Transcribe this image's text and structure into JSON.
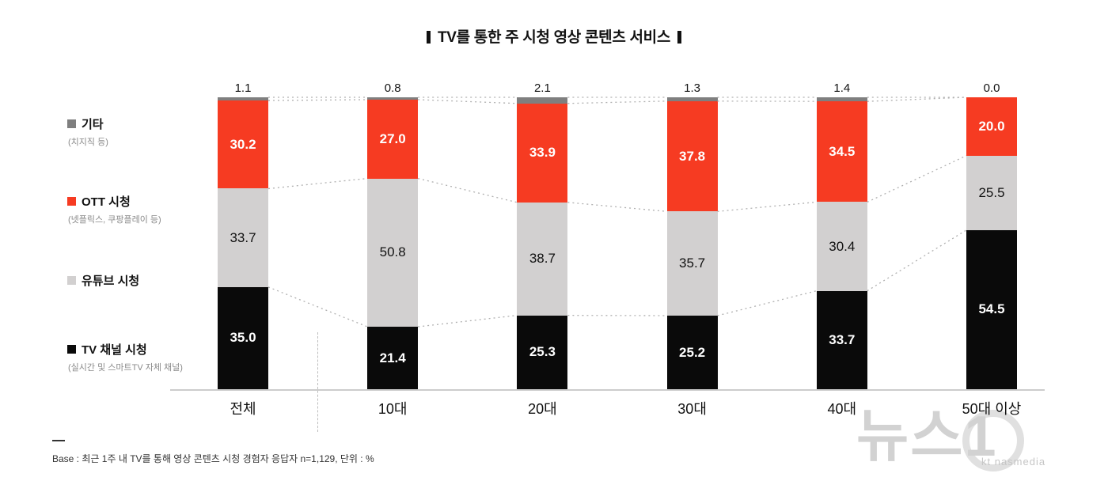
{
  "title": "TV를 통한 주 시청 영상 콘텐츠 서비스",
  "legend": [
    {
      "label": "기타",
      "sub": "(치지직 등)",
      "color": "#7f7f7f"
    },
    {
      "label": "OTT 시청",
      "sub": "(넷플릭스, 쿠팡플레이 등)",
      "color": "#f63b22"
    },
    {
      "label": "유튜브 시청",
      "sub": "",
      "color": "#d2d0d0"
    },
    {
      "label": "TV 채널 시청",
      "sub": "(실시간 및 스마트TV 자체 채널)",
      "color": "#0a0a0a"
    }
  ],
  "chart_data": {
    "type": "bar",
    "stacked": true,
    "unit": "%",
    "title": "TV를 통한 주 시청 영상 콘텐츠 서비스",
    "categories": [
      "전체",
      "10대",
      "20대",
      "30대",
      "40대",
      "50대 이상"
    ],
    "series": [
      {
        "name": "TV 채널 시청",
        "color": "#0a0a0a",
        "label_color": "#ffffff",
        "values": [
          35.0,
          21.4,
          25.3,
          25.2,
          33.7,
          54.5
        ]
      },
      {
        "name": "유튜브 시청",
        "color": "#d2d0d0",
        "label_color": "#111111",
        "values": [
          33.7,
          50.8,
          38.7,
          35.7,
          30.4,
          25.5
        ]
      },
      {
        "name": "OTT 시청",
        "color": "#f63b22",
        "label_color": "#ffffff",
        "values": [
          30.2,
          27.0,
          33.9,
          37.8,
          34.5,
          20.0
        ]
      },
      {
        "name": "기타",
        "color": "#7f7f7f",
        "label_color": "#111111",
        "label_outside": true,
        "values": [
          1.1,
          0.8,
          2.1,
          1.3,
          1.4,
          0.0
        ]
      }
    ],
    "ylim": [
      0,
      100
    ],
    "grid": false,
    "legend_position": "left",
    "connector_lines": "dotted"
  },
  "footer": {
    "base_note": "Base : 최근 1주 내 TV를 통해 영상 콘텐츠 시청 경험자 응답자 n=1,129, 단위 : %"
  },
  "watermark": {
    "text": "뉴스1",
    "sub": "kt nasmedia"
  }
}
